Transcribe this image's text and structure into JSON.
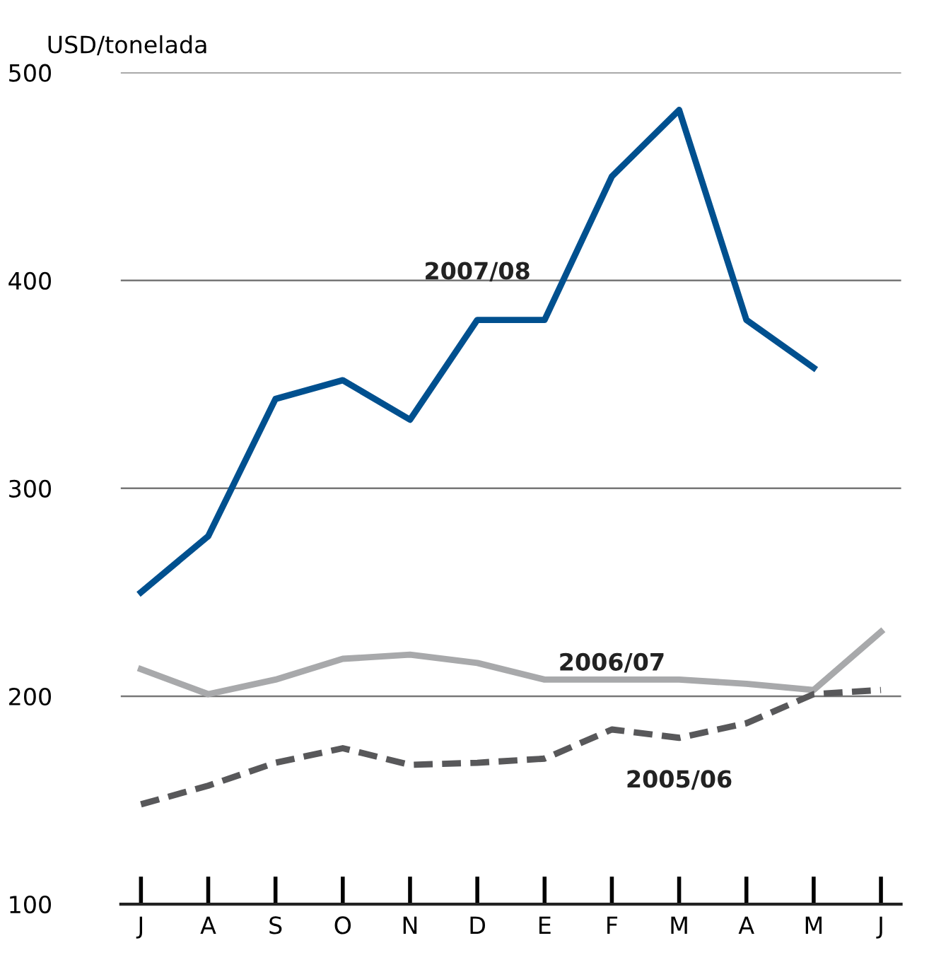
{
  "chart_data": {
    "type": "line",
    "ylabel": "USD/tonelada",
    "categories": [
      "J",
      "A",
      "S",
      "O",
      "N",
      "D",
      "E",
      "F",
      "M",
      "A",
      "M",
      "J"
    ],
    "series": [
      {
        "name": "2007/08",
        "color": "#00508f",
        "values": [
          250,
          277,
          343,
          352,
          333,
          381,
          381,
          450,
          482,
          381,
          358,
          null
        ]
      },
      {
        "name": "2006/07",
        "color": "#a8a9ab",
        "values": [
          213,
          201,
          208,
          218,
          220,
          216,
          208,
          208,
          208,
          206,
          203,
          231
        ]
      },
      {
        "name": "2005/06",
        "color": "#58585a",
        "line_style": "dashed",
        "values": [
          148,
          157,
          168,
          175,
          167,
          168,
          170,
          184,
          180,
          187,
          201,
          203
        ]
      }
    ],
    "ylim": [
      100,
      500
    ],
    "yticks": [
      100,
      200,
      300,
      400,
      500
    ],
    "grid": "y",
    "legend": false,
    "marker": "none",
    "line_style": "solid"
  }
}
